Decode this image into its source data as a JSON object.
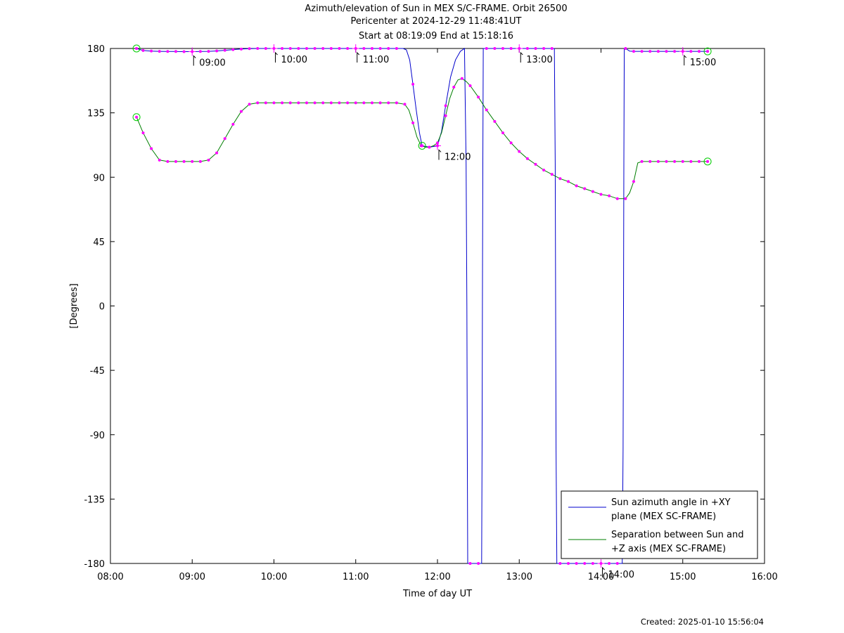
{
  "chart_data": {
    "type": "line",
    "title": "Azimuth/elevation of Sun in MEX S/C-FRAME.  Orbit 26500",
    "subtitle": "Pericenter at 2024-12-29 11:48:41UT",
    "subtitle2": "Start at 08:19:09 End at 15:18:16",
    "xlabel": "Time of day UT",
    "ylabel": "[Degrees]",
    "xlim": [
      8.0,
      16.0
    ],
    "ylim": [
      -180,
      180
    ],
    "x_ticks": [
      8,
      9,
      10,
      11,
      12,
      13,
      14,
      15,
      16
    ],
    "x_tick_labels": [
      "08:00",
      "09:00",
      "10:00",
      "11:00",
      "12:00",
      "13:00",
      "14:00",
      "15:00",
      "16:00"
    ],
    "y_ticks": [
      180,
      135,
      90,
      45,
      0,
      -45,
      -90,
      -135,
      -180
    ],
    "y_tick_labels": [
      "180",
      "135",
      "90",
      "45",
      "0",
      "-45",
      "-90",
      "-135",
      "-180"
    ],
    "legend_position": "bottom-right",
    "grid": false,
    "series": [
      {
        "name": "Sun azimuth angle in +XY plane (MEX SC-FRAME)",
        "legend_lines": [
          "Sun azimuth angle in +XY",
          "plane (MEX SC-FRAME)"
        ],
        "color": "#0000cc",
        "x": [
          8.319,
          8.4,
          8.5,
          8.6,
          8.7,
          8.8,
          8.9,
          9.0,
          9.1,
          9.2,
          9.3,
          9.4,
          9.5,
          9.6,
          9.7,
          9.8,
          9.9,
          10.0,
          10.1,
          10.2,
          10.3,
          10.4,
          10.5,
          10.6,
          10.7,
          10.8,
          10.9,
          11.0,
          11.1,
          11.2,
          11.3,
          11.4,
          11.5,
          11.58,
          11.62,
          11.66,
          11.7,
          11.74,
          11.78,
          11.812,
          11.9,
          12.0,
          12.05,
          12.1,
          12.16,
          12.22,
          12.28,
          12.33,
          12.35,
          12.36,
          12.365,
          12.37,
          12.4,
          12.45,
          12.5,
          12.54,
          12.545,
          12.55,
          12.555,
          12.56,
          12.6,
          12.7,
          12.8,
          12.9,
          13.0,
          13.1,
          13.2,
          13.3,
          13.4,
          13.43,
          13.44,
          13.445,
          13.45,
          13.46,
          13.5,
          13.6,
          13.7,
          13.8,
          13.9,
          14.0,
          14.1,
          14.2,
          14.26,
          14.27,
          14.275,
          14.28,
          14.285,
          14.3,
          14.35,
          14.4,
          14.5,
          14.6,
          14.7,
          14.8,
          14.9,
          15.0,
          15.1,
          15.2,
          15.304
        ],
        "y": [
          180,
          178.6,
          178.2,
          178.0,
          177.9,
          177.9,
          177.8,
          177.8,
          177.9,
          178.0,
          178.3,
          178.7,
          179.2,
          179.6,
          179.9,
          180,
          180,
          180,
          180,
          180,
          180,
          180,
          180,
          180,
          180,
          180,
          180,
          180,
          180,
          180,
          180,
          180,
          180,
          180,
          179,
          172,
          155,
          137,
          121,
          112,
          111,
          112,
          122,
          140,
          160,
          172,
          178,
          180,
          100,
          0,
          -100,
          -180,
          -180,
          -180,
          -180,
          -180,
          -100,
          0,
          100,
          180,
          180,
          180,
          180,
          180,
          180,
          180,
          180,
          180,
          180,
          180,
          100,
          0,
          -100,
          -180,
          -180,
          -180,
          -180,
          -180,
          -180,
          -180,
          -180,
          -180,
          -180,
          -100,
          0,
          100,
          180,
          180,
          178.2,
          178.0,
          178.0,
          178.0,
          178.0,
          178.0,
          178.0,
          178.0,
          178.0,
          178.0,
          178.0
        ]
      },
      {
        "name": "Separation between Sun and +Z axis (MEX SC-FRAME)",
        "legend_lines": [
          "Separation between Sun and",
          "+Z axis (MEX SC-FRAME)"
        ],
        "color": "#007f00",
        "x": [
          8.319,
          8.4,
          8.5,
          8.6,
          8.7,
          8.8,
          8.9,
          9.0,
          9.1,
          9.2,
          9.3,
          9.4,
          9.5,
          9.6,
          9.7,
          9.8,
          9.9,
          10.0,
          10.1,
          10.2,
          10.3,
          10.4,
          10.5,
          10.6,
          10.7,
          10.8,
          10.9,
          11.0,
          11.1,
          11.2,
          11.3,
          11.4,
          11.5,
          11.6,
          11.65,
          11.7,
          11.75,
          11.8,
          11.812,
          11.85,
          11.9,
          11.95,
          12.0,
          12.05,
          12.1,
          12.15,
          12.2,
          12.25,
          12.3,
          12.35,
          12.4,
          12.5,
          12.6,
          12.7,
          12.8,
          12.9,
          13.0,
          13.1,
          13.2,
          13.3,
          13.4,
          13.5,
          13.6,
          13.7,
          13.8,
          13.9,
          14.0,
          14.1,
          14.2,
          14.3,
          14.35,
          14.4,
          14.45,
          14.5,
          14.6,
          14.7,
          14.8,
          14.9,
          15.0,
          15.1,
          15.2,
          15.304
        ],
        "y": [
          132,
          121,
          110,
          102,
          101,
          101,
          101,
          101,
          101,
          102,
          107,
          117,
          127,
          136,
          141,
          142,
          142,
          142,
          142,
          142,
          142,
          142,
          142,
          142,
          142,
          142,
          142,
          142,
          142,
          142,
          142,
          142,
          142,
          141,
          137,
          128,
          118,
          112,
          112,
          111,
          111,
          112,
          114,
          121,
          133,
          145,
          153,
          158,
          159,
          157,
          154,
          146,
          137,
          129,
          121,
          114,
          108,
          103,
          99,
          95,
          92,
          89,
          87,
          84,
          82,
          80,
          78,
          77,
          75,
          75,
          79,
          87,
          100,
          101,
          101,
          101,
          101,
          101,
          101,
          101,
          101,
          101
        ]
      }
    ],
    "markers": [
      {
        "x": 8.319,
        "y": 180,
        "series": 0
      },
      {
        "x": 15.304,
        "y": 178,
        "series": 0
      },
      {
        "x": 8.319,
        "y": 132,
        "series": 1
      },
      {
        "x": 11.812,
        "y": 112,
        "series": 1
      },
      {
        "x": 15.304,
        "y": 101,
        "series": 1
      }
    ],
    "time_annotations": [
      {
        "label": "09:00",
        "x": 9.0,
        "y": 177.8
      },
      {
        "label": "10:00",
        "x": 10.0,
        "y": 180
      },
      {
        "label": "11:00",
        "x": 11.0,
        "y": 180
      },
      {
        "label": "12:00",
        "x": 12.0,
        "y": 112
      },
      {
        "label": "13:00",
        "x": 13.0,
        "y": 180
      },
      {
        "label": "14:00",
        "x": 14.0,
        "y": -180
      },
      {
        "label": "15:00",
        "x": 15.0,
        "y": 178
      }
    ],
    "point_color": "#ff00ff",
    "marker_color": "#00cc00"
  },
  "footer": {
    "created": "Created: 2025-01-10 15:56:04"
  }
}
